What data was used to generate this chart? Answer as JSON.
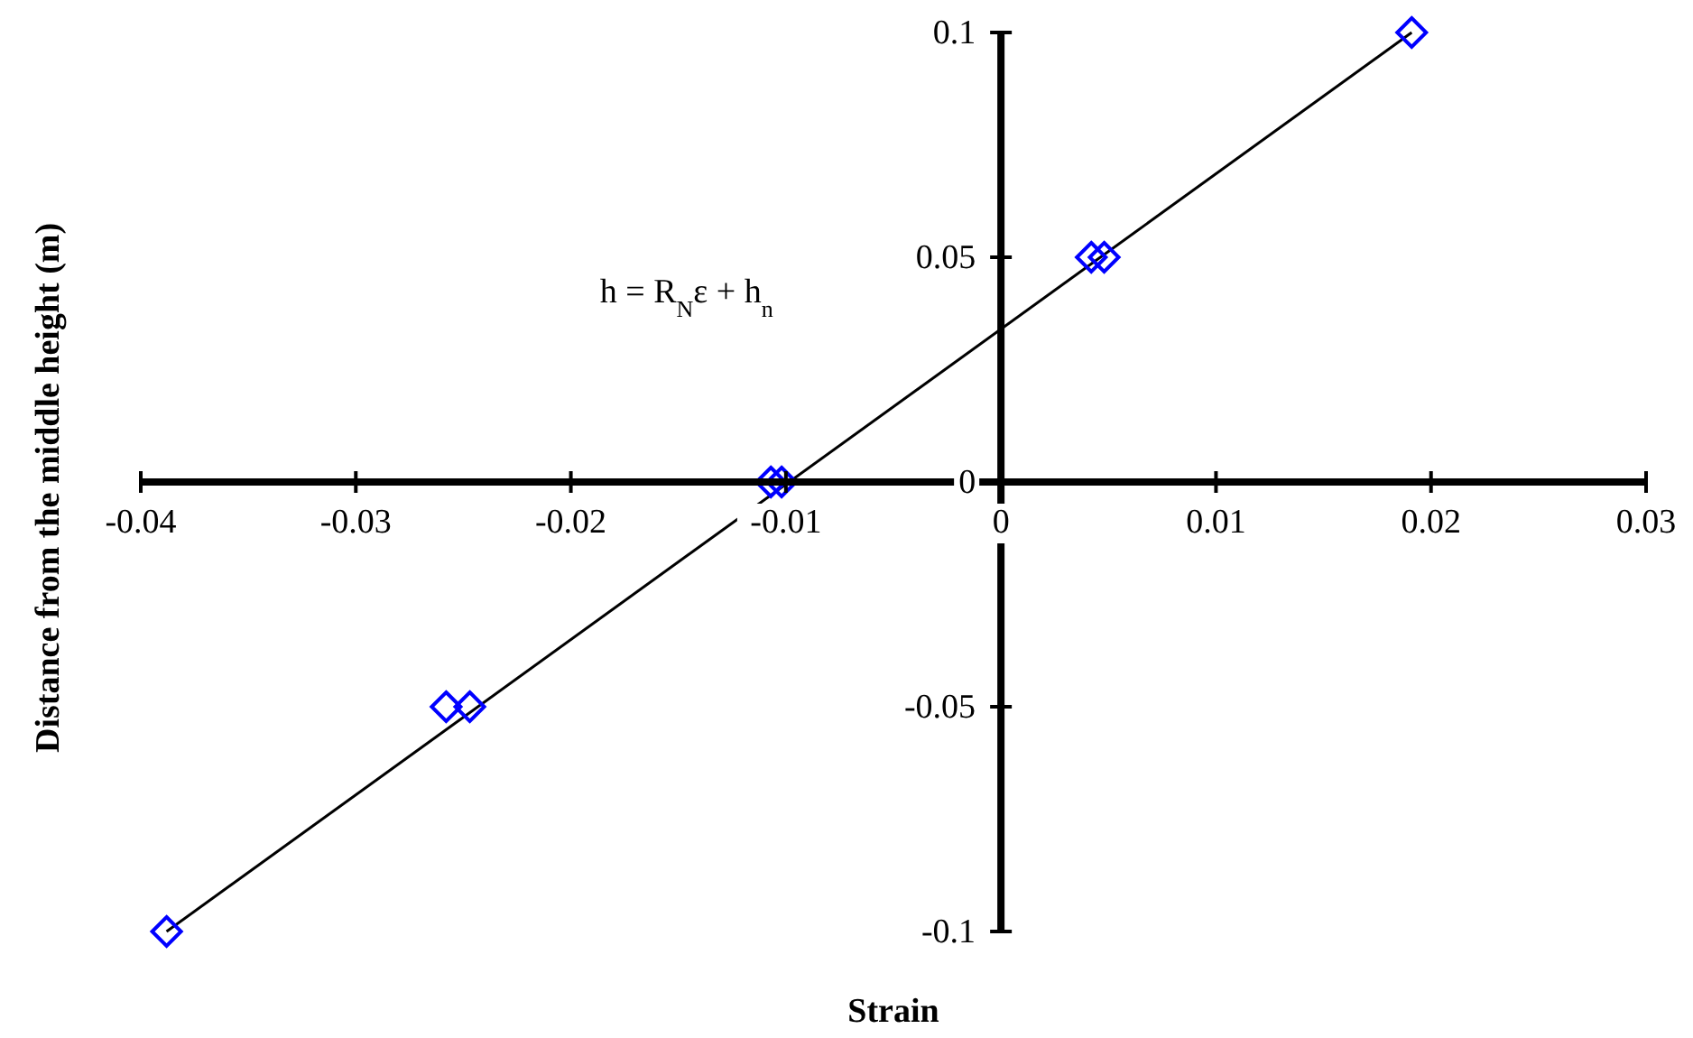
{
  "chart_data": {
    "type": "scatter",
    "xlabel": "Strain",
    "ylabel": "Distance from the middle height (m)",
    "x": [
      -0.0388,
      -0.0258,
      -0.0247,
      -0.0107,
      -0.0102,
      0.0042,
      0.0048,
      0.0191
    ],
    "series": [
      {
        "color": "#0000ff",
        "marker": "diamond",
        "values": [
          -0.1,
          -0.05,
          -0.05,
          0,
          0,
          0.05,
          0.05,
          0.1
        ]
      },
      {
        "type": "line",
        "color": "#000000",
        "marker": "none",
        "x": [
          -0.0388,
          0.0191
        ],
        "values": [
          -0.1,
          0.1
        ]
      }
    ],
    "annotations": [
      "h = R$_{N}$ε + h$_{n}$"
    ],
    "xlim": [
      -0.04,
      0.03
    ],
    "xticks": [
      -0.04,
      -0.03,
      -0.02,
      -0.01,
      0,
      0.01,
      0.02,
      0.03
    ],
    "ylim": [
      -0.1,
      0.1
    ],
    "yticks": [
      -0.1,
      -0.05,
      0,
      0.05,
      0.1
    ],
    "grid": false,
    "legend": false
  }
}
